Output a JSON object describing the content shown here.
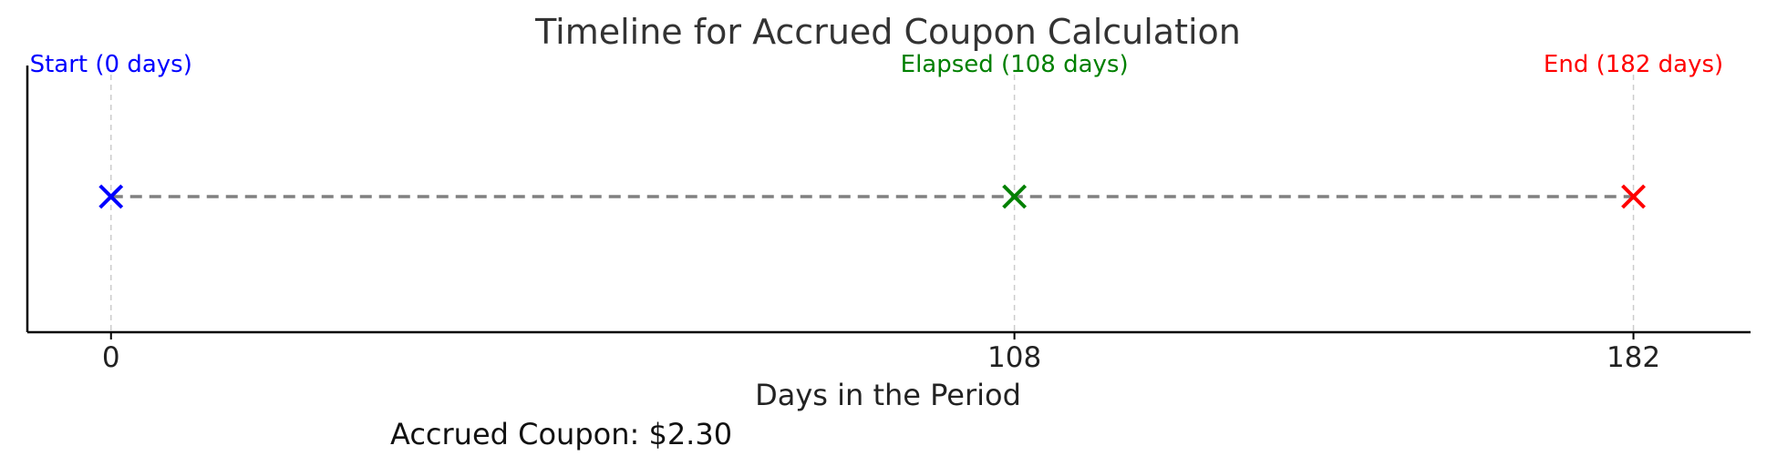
{
  "chart_data": {
    "type": "scatter",
    "title": "Timeline for Accrued Coupon Calculation",
    "xlabel": "Days in the Period",
    "ylabel": "",
    "xlim": [
      -10,
      196
    ],
    "x_ticks": [
      "0",
      "108",
      "182"
    ],
    "grid": "vertical dashed lines at points",
    "connector": "dashed gray line",
    "points": [
      {
        "x": 0,
        "label": "Start (0 days)",
        "color": "#0000ff",
        "marker": "x"
      },
      {
        "x": 108,
        "label": "Elapsed (108 days)",
        "color": "#008000",
        "marker": "x"
      },
      {
        "x": 182,
        "label": "End (182 days)",
        "color": "#ff0000",
        "marker": "x"
      }
    ],
    "annotation": "Accrued Coupon: $2.30"
  }
}
